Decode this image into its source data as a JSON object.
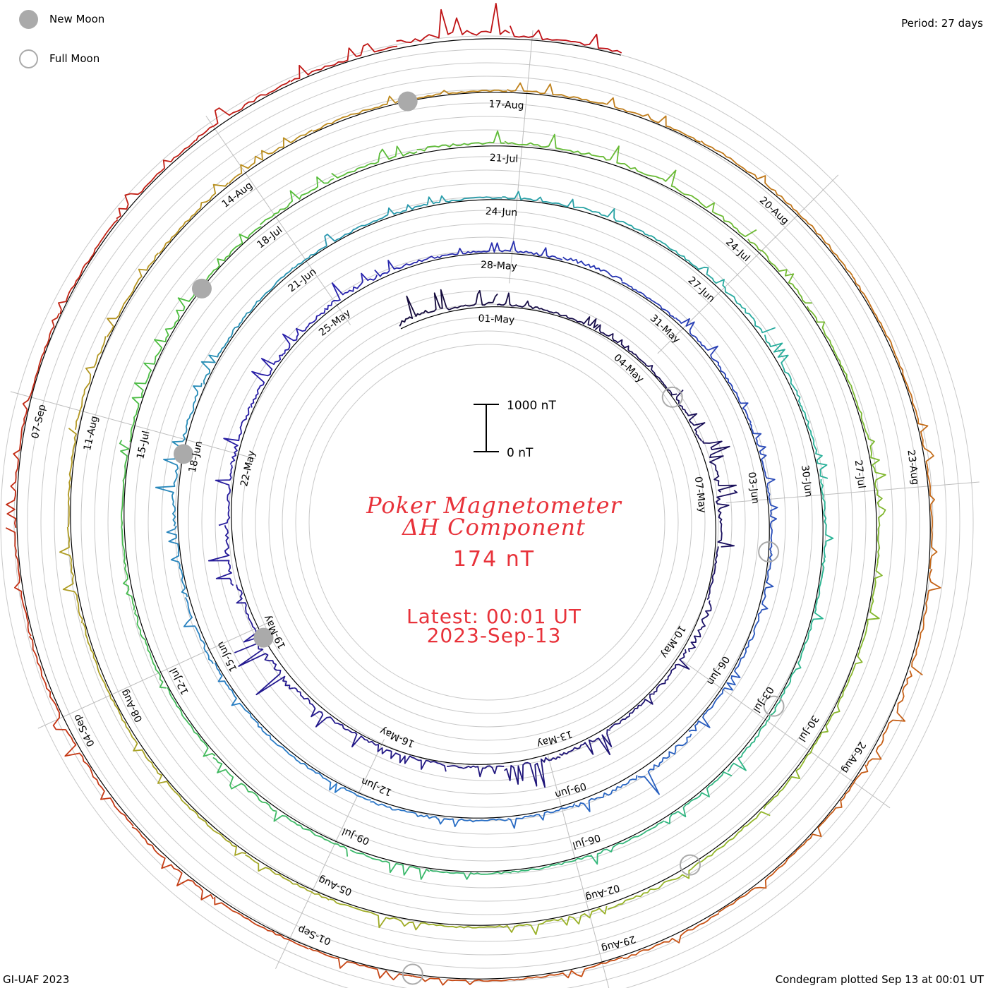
{
  "legend": {
    "new_moon_label": "New Moon",
    "full_moon_label": "Full Moon",
    "new_moon_color": "#aaaaaa",
    "full_moon_color": "#aaaaaa"
  },
  "header": {
    "period": "Period: 27 days"
  },
  "footer": {
    "credit": "GI-UAF 2023",
    "plotted": "Condegram plotted Sep 13 at 00:01 UT"
  },
  "title": {
    "line1": "Poker Magnetometer",
    "line2": "ΔH Component",
    "value": "174 nT",
    "latest_line1": "Latest: 00:01 UT",
    "latest_line2": "2023-Sep-13"
  },
  "scale_bar": {
    "top_label": "1000 nT",
    "bottom_label": "0 nT"
  },
  "chart_data": {
    "type": "line",
    "title": "Poker Magnetometer ΔH Component",
    "subtitle": "174 nT",
    "units": "nT",
    "period_days": 27,
    "start_date": "2023-04-29",
    "latest": "2023-09-13 00:01 UT",
    "scale_bar_nt": [
      0,
      1000
    ],
    "layout": "spiral condegram (one 27-day revolution per ring, clockwise from top)",
    "date_labels": [
      "01-May",
      "04-May",
      "07-May",
      "10-May",
      "13-May",
      "16-May",
      "19-May",
      "22-May",
      "25-May",
      "28-May",
      "31-May",
      "03-Jun",
      "06-Jun",
      "09-Jun",
      "12-Jun",
      "15-Jun",
      "18-Jun",
      "21-Jun",
      "24-Jun",
      "27-Jun",
      "30-Jun",
      "03-Jul",
      "06-Jul",
      "09-Jul",
      "12-Jul",
      "15-Jul",
      "18-Jul",
      "21-Jul",
      "24-Jul",
      "27-Jul",
      "30-Jul",
      "02-Aug",
      "05-Aug",
      "08-Aug",
      "11-Aug",
      "14-Aug",
      "17-Aug",
      "20-Aug",
      "23-Aug",
      "26-Aug",
      "29-Aug",
      "01-Sep",
      "04-Sep",
      "07-Sep"
    ],
    "new_moons": [
      "2023-05-19",
      "2023-06-18",
      "2023-07-17",
      "2023-08-16"
    ],
    "full_moons": [
      "2023-05-05",
      "2023-06-04",
      "2023-07-03",
      "2023-08-01",
      "2023-08-31"
    ],
    "series": {
      "name": "ΔH",
      "daily_peak_nt": [
        320,
        180,
        150,
        120,
        110,
        90,
        160,
        420,
        260,
        130,
        380,
        210,
        160,
        250,
        300,
        180,
        140,
        150,
        220,
        420,
        200,
        380,
        180,
        230,
        190,
        170,
        230,
        200,
        120,
        140,
        230,
        110,
        160,
        120,
        110,
        110,
        150,
        170,
        140,
        340,
        260,
        160,
        150,
        180,
        130,
        160,
        110,
        190,
        120,
        250,
        200,
        150,
        140,
        110,
        120,
        110,
        110,
        170,
        130,
        210,
        180,
        150,
        130,
        120,
        110,
        160,
        120,
        130,
        120,
        110,
        140,
        150,
        180,
        110,
        160,
        130,
        110,
        120,
        150,
        110,
        170,
        140,
        200,
        190,
        220,
        180,
        150,
        110,
        120,
        130,
        120,
        100,
        110,
        160,
        210,
        150,
        110,
        140,
        130,
        120,
        120,
        110,
        140,
        110,
        180,
        120,
        110,
        130,
        120,
        90,
        120,
        110,
        150,
        130,
        110,
        100,
        100,
        160,
        220,
        100,
        110,
        180,
        110,
        100,
        100,
        120,
        160,
        160,
        150,
        130,
        110,
        100,
        100,
        130,
        170,
        140,
        370,
        150
      ]
    }
  }
}
